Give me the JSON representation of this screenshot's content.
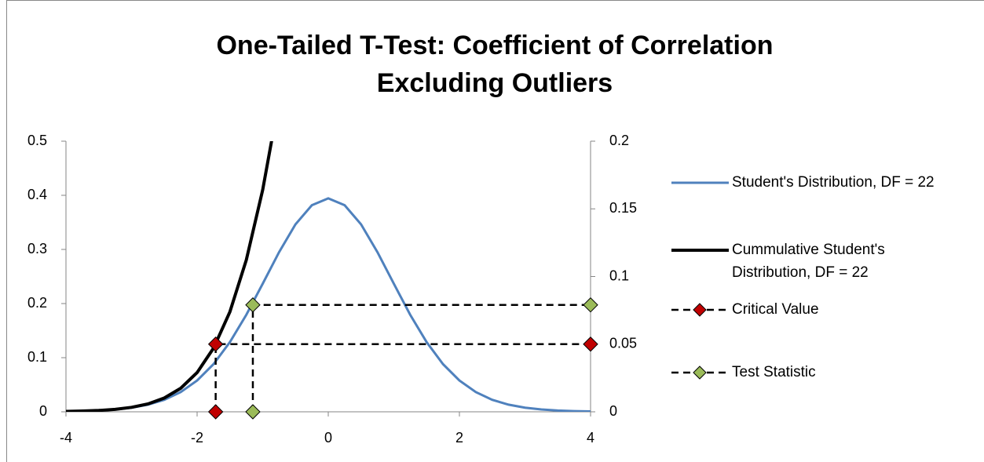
{
  "chart_data": {
    "type": "line",
    "title": [
      "One-Tailed T-Test: Coefficient of Correlation",
      "Excluding Outliers"
    ],
    "xlim": [
      -4,
      4
    ],
    "xticks": [
      -4,
      -2,
      0,
      2,
      4
    ],
    "ylim": [
      0,
      0.5
    ],
    "yticks": [
      0,
      0.1,
      0.2,
      0.3,
      0.4,
      0.5
    ],
    "y2lim": [
      0,
      0.2
    ],
    "y2ticks": [
      0,
      0.05,
      0.1,
      0.15,
      0.2
    ],
    "series": [
      {
        "name": "Student's Distribution, DF = 22",
        "color": "#4f81bd",
        "axis": "y",
        "x": [
          -4,
          -3.75,
          -3.5,
          -3.25,
          -3,
          -2.75,
          -2.5,
          -2.25,
          -2,
          -1.75,
          -1.5,
          -1.25,
          -1,
          -0.75,
          -0.5,
          -0.25,
          0,
          0.25,
          0.5,
          0.75,
          1,
          1.25,
          1.5,
          1.75,
          2,
          2.25,
          2.5,
          2.75,
          3,
          3.25,
          3.5,
          3.75,
          4
        ],
        "values": [
          0.0007,
          0.0013,
          0.0024,
          0.0043,
          0.0076,
          0.0132,
          0.0222,
          0.0364,
          0.0578,
          0.0881,
          0.1287,
          0.1792,
          0.2366,
          0.295,
          0.3464,
          0.3817,
          0.3944,
          0.3817,
          0.3464,
          0.295,
          0.2366,
          0.1792,
          0.1287,
          0.0881,
          0.0578,
          0.0364,
          0.0222,
          0.0132,
          0.0076,
          0.0043,
          0.0024,
          0.0013,
          0.0007
        ]
      },
      {
        "name": "Cummulative Student's Distribution, DF = 22",
        "color": "#000000",
        "axis": "y2",
        "x": [
          -4,
          -3.75,
          -3.5,
          -3.25,
          -3,
          -2.75,
          -2.5,
          -2.25,
          -2,
          -1.75,
          -1.5,
          -1.25,
          -1,
          -0.75
        ],
        "values": [
          0.0003,
          0.0006,
          0.001,
          0.0018,
          0.0033,
          0.0058,
          0.0102,
          0.0174,
          0.029,
          0.047,
          0.0739,
          0.1122,
          0.164,
          0.2306
        ]
      },
      {
        "name": "Critical Value",
        "color": "#c00000",
        "axis": "y2",
        "dashed": true,
        "marker": "diamond",
        "x": [
          -1.717,
          -1.717,
          4
        ],
        "values": [
          0,
          0.05,
          0.05
        ]
      },
      {
        "name": "Test Statistic",
        "color": "#9bbb59",
        "axis": "y2",
        "dashed": true,
        "marker": "diamond",
        "x": [
          -1.15,
          -1.15,
          4
        ],
        "values": [
          0,
          0.079,
          0.079
        ]
      }
    ]
  }
}
